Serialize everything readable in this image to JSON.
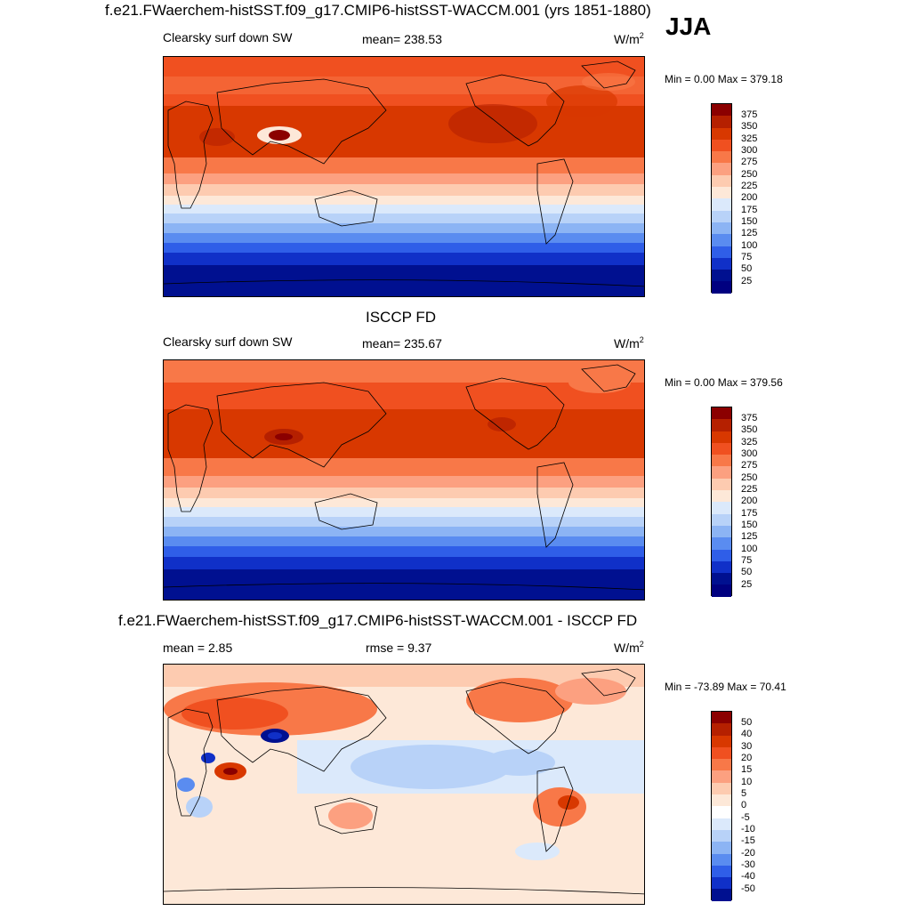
{
  "season": "JJA",
  "panels": [
    {
      "title": "f.e21.FWaerchem-histSST.f09_g17.CMIP6-histSST-WACCM.001 (yrs 1851-1880)",
      "left_label": "Clearsky surf down SW",
      "center_label": "mean= 238.53",
      "units": "W/m",
      "units_sup": "2",
      "minmax": "Min =   0.00 Max = 379.18",
      "colorbar_labels": [
        "375",
        "350",
        "325",
        "300",
        "275",
        "250",
        "225",
        "200",
        "175",
        "150",
        "125",
        "100",
        "75",
        "50",
        "25"
      ]
    },
    {
      "title": "ISCCP FD",
      "left_label": "Clearsky surf down SW",
      "center_label": "mean= 235.67",
      "units": "W/m",
      "units_sup": "2",
      "minmax": "Min =   0.00 Max = 379.56",
      "colorbar_labels": [
        "375",
        "350",
        "325",
        "300",
        "275",
        "250",
        "225",
        "200",
        "175",
        "150",
        "125",
        "100",
        "75",
        "50",
        "25"
      ]
    },
    {
      "title": "f.e21.FWaerchem-histSST.f09_g17.CMIP6-histSST-WACCM.001 - ISCCP FD",
      "left_label": "mean =   2.85",
      "center_label": "rmse =   9.37",
      "units": "W/m",
      "units_sup": "2",
      "minmax": "Min = -73.89 Max =  70.41",
      "colorbar_labels": [
        "50",
        "40",
        "30",
        "20",
        "15",
        "10",
        "5",
        "0",
        "-5",
        "-10",
        "-15",
        "-20",
        "-30",
        "-40",
        "-50"
      ]
    }
  ],
  "colors": {
    "seq": [
      "#8b0000",
      "#b52000",
      "#d83800",
      "#f05020",
      "#f87848",
      "#fca080",
      "#fdcbb0",
      "#fde8d8",
      "#dbe9fb",
      "#b8d2f8",
      "#8cb4f4",
      "#5a8cf0",
      "#2f5ee8",
      "#1030c8",
      "#001090",
      "#000080"
    ],
    "diff": [
      "#8b0000",
      "#b52000",
      "#d83800",
      "#f05020",
      "#f87848",
      "#fca080",
      "#fdcbb0",
      "#fde8d8",
      "#ffffff",
      "#dbe9fb",
      "#b8d2f8",
      "#8cb4f4",
      "#5a8cf0",
      "#2f5ee8",
      "#1030c8",
      "#001090"
    ]
  }
}
